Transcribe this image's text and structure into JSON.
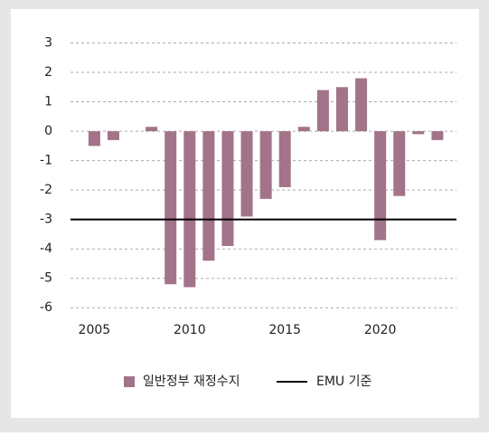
{
  "chart_data": {
    "type": "bar",
    "x": [
      2005,
      2006,
      2008,
      2009,
      2010,
      2011,
      2012,
      2013,
      2014,
      2015,
      2016,
      2017,
      2018,
      2019,
      2020,
      2021,
      2022,
      2023
    ],
    "series": [
      {
        "name": "일반정부 재정수지",
        "color": "#a27389",
        "values": [
          -0.5,
          -0.3,
          0.15,
          -5.2,
          -5.3,
          -4.4,
          -3.9,
          -2.9,
          -2.3,
          -1.9,
          0.15,
          1.4,
          1.5,
          1.8,
          -3.7,
          -2.2,
          -0.1,
          -0.3
        ]
      }
    ],
    "reference_line": {
      "name": "EMU 기준",
      "value": -3,
      "color": "#000000"
    },
    "xlim": [
      2003.75,
      2024
    ],
    "xticks": [
      2005,
      2010,
      2015,
      2020
    ],
    "ylim": [
      -6.3,
      3.2
    ],
    "yticks": [
      3,
      2,
      1,
      0,
      -1,
      -2,
      -3,
      -4,
      -5,
      -6
    ],
    "grid": true,
    "legend": "bottom"
  }
}
